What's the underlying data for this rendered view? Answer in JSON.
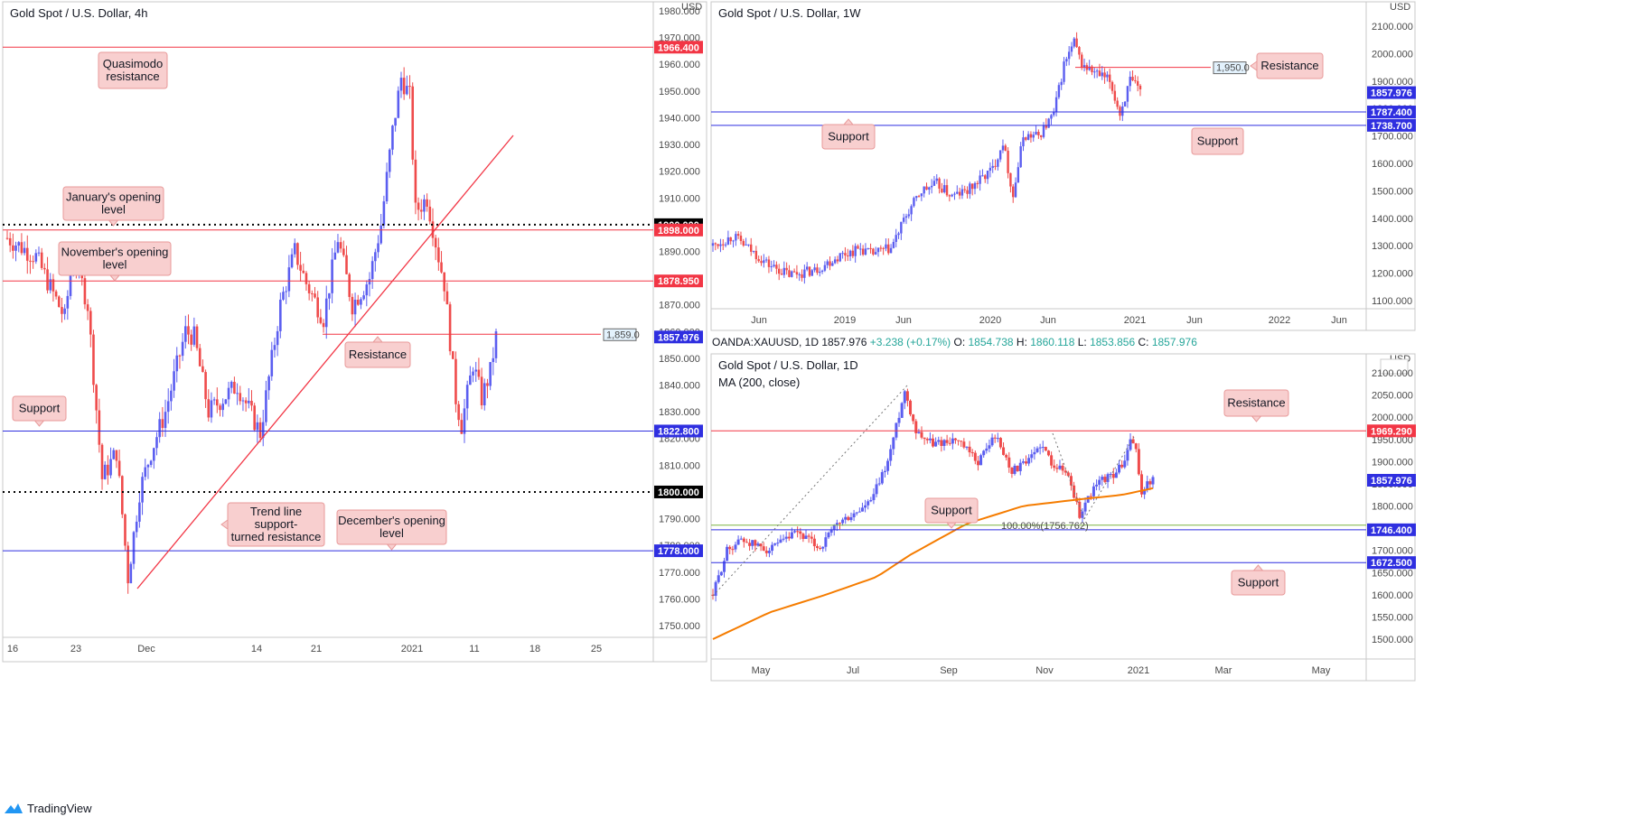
{
  "brand": "TradingView",
  "colors": {
    "up": "#5b5ef0",
    "down": "#ef4b4b",
    "red": "#f23645",
    "blue": "#2f2fe0",
    "black": "#000000",
    "ma": "#f57c00",
    "fib": "#7cb342",
    "note_bg": "#f8cfcf"
  },
  "panels": {
    "p4h": {
      "title": "Gold Spot / U.S. Dollar, 4h",
      "currency": "USD"
    },
    "p1w": {
      "title": "Gold Spot / U.S. Dollar, 1W",
      "currency": "USD"
    },
    "p1d": {
      "title": "Gold Spot / U.S. Dollar, 1D",
      "currency": "USD",
      "ma_label": "MA (200, close)"
    }
  },
  "quote_bar": {
    "symbol": "OANDA:XAUUSD, 1D",
    "last": "1857.976",
    "change": "+3.238 (+0.17%)",
    "o_label": "O:",
    "o": "1854.738",
    "h_label": "H:",
    "h": "1860.118",
    "l_label": "L:",
    "l": "1853.856",
    "c_label": "C:",
    "c": "1857.976"
  },
  "chart_data": [
    {
      "type": "candlestick",
      "title": "Gold Spot / U.S. Dollar, 4h",
      "y_ticks": [
        "1980.000",
        "1970.000",
        "1960.000",
        "1950.000",
        "1940.000",
        "1930.000",
        "1920.000",
        "1910.000",
        "1900.000",
        "1890.000",
        "1880.000",
        "1870.000",
        "1860.000",
        "1850.000",
        "1840.000",
        "1830.000",
        "1820.000",
        "1810.000",
        "1800.000",
        "1790.000",
        "1780.000",
        "1770.000",
        "1760.000",
        "1750.000"
      ],
      "x_ticks": [
        "16",
        "23",
        "Dec",
        "14",
        "21",
        "2021",
        "11",
        "18",
        "25"
      ],
      "ylim": [
        1745,
        1983
      ],
      "path": [
        [
          0,
          1895
        ],
        [
          10,
          1888
        ],
        [
          20,
          1865
        ],
        [
          23,
          1890
        ],
        [
          28,
          1870
        ],
        [
          33,
          1805
        ],
        [
          38,
          1815
        ],
        [
          41,
          1780
        ],
        [
          42,
          1768
        ],
        [
          46,
          1800
        ],
        [
          50,
          1815
        ],
        [
          55,
          1830
        ],
        [
          62,
          1860
        ],
        [
          65,
          1858
        ],
        [
          70,
          1830
        ],
        [
          80,
          1840
        ],
        [
          88,
          1822
        ],
        [
          95,
          1870
        ],
        [
          100,
          1890
        ],
        [
          104,
          1878
        ],
        [
          110,
          1865
        ],
        [
          115,
          1895
        ],
        [
          120,
          1870
        ],
        [
          126,
          1880
        ],
        [
          130,
          1900
        ],
        [
          134,
          1935
        ],
        [
          137,
          1955
        ],
        [
          140,
          1948
        ],
        [
          142,
          1905
        ],
        [
          146,
          1910
        ],
        [
          150,
          1888
        ],
        [
          152,
          1878
        ],
        [
          156,
          1835
        ],
        [
          158,
          1825
        ],
        [
          162,
          1848
        ],
        [
          165,
          1835
        ],
        [
          168,
          1845
        ],
        [
          170,
          1858
        ]
      ],
      "levels": [
        {
          "value": "1966.400",
          "color": "red"
        },
        {
          "value": "1900.000",
          "color": "black"
        },
        {
          "value": "1898.000",
          "color": "red"
        },
        {
          "value": "1878.950",
          "color": "red"
        },
        {
          "value": "1857.976",
          "color": "blue"
        },
        {
          "value": "1822.800",
          "color": "blue"
        },
        {
          "value": "1800.000",
          "color": "black"
        },
        {
          "value": "1778.000",
          "color": "blue"
        }
      ],
      "resistance_line": {
        "value": 1859.0,
        "label": "1,859.0"
      },
      "annotations": [
        "Quasimodo resistance",
        "January's opening level",
        "November's opening level",
        "Resistance",
        "Support",
        "Trend line support-turned resistance",
        "December's opening level"
      ]
    },
    {
      "type": "candlestick",
      "title": "Gold Spot / U.S. Dollar, 1W",
      "y_ticks": [
        "2100.000",
        "2000.000",
        "1900.000",
        "1800.000",
        "1700.000",
        "1600.000",
        "1500.000",
        "1400.000",
        "1300.000",
        "1200.000",
        "1100.000"
      ],
      "x_ticks": [
        "Jun",
        "2019",
        "Jun",
        "2020",
        "Jun",
        "2021",
        "Jun",
        "2022",
        "Jun"
      ],
      "ylim": [
        1060,
        2145
      ],
      "path": [
        [
          0,
          1300
        ],
        [
          8,
          1335
        ],
        [
          14,
          1290
        ],
        [
          22,
          1230
        ],
        [
          30,
          1195
        ],
        [
          40,
          1210
        ],
        [
          50,
          1265
        ],
        [
          58,
          1290
        ],
        [
          62,
          1270
        ],
        [
          70,
          1290
        ],
        [
          76,
          1410
        ],
        [
          82,
          1500
        ],
        [
          88,
          1525
        ],
        [
          94,
          1480
        ],
        [
          100,
          1500
        ],
        [
          110,
          1580
        ],
        [
          114,
          1680
        ],
        [
          118,
          1480
        ],
        [
          122,
          1700
        ],
        [
          128,
          1700
        ],
        [
          134,
          1780
        ],
        [
          138,
          1960
        ],
        [
          142,
          2040
        ],
        [
          145,
          1960
        ],
        [
          150,
          1930
        ],
        [
          156,
          1900
        ],
        [
          160,
          1780
        ],
        [
          164,
          1900
        ],
        [
          168,
          1860
        ]
      ],
      "levels": [
        {
          "value": "1857.976",
          "color": "blue"
        },
        {
          "value": "1787.400",
          "color": "blue"
        },
        {
          "value": "1738.700",
          "color": "blue"
        }
      ],
      "resistance_line": {
        "value": 1950.0,
        "label": "1,950.0"
      },
      "annotations": [
        "Resistance",
        "Support",
        "Support"
      ]
    },
    {
      "type": "candlestick",
      "title": "Gold Spot / U.S. Dollar, 1D",
      "y_ticks": [
        "2100.000",
        "2050.000",
        "2000.000",
        "1950.000",
        "1900.000",
        "1850.000",
        "1800.000",
        "1750.000",
        "1700.000",
        "1650.000",
        "1600.000",
        "1550.000",
        "1500.000"
      ],
      "x_ticks": [
        "May",
        "Jul",
        "Sep",
        "Nov",
        "2021",
        "Mar",
        "May"
      ],
      "ylim": [
        1475,
        2115
      ],
      "path": [
        [
          0,
          1600
        ],
        [
          5,
          1700
        ],
        [
          10,
          1725
        ],
        [
          20,
          1700
        ],
        [
          30,
          1740
        ],
        [
          38,
          1705
        ],
        [
          44,
          1760
        ],
        [
          50,
          1780
        ],
        [
          56,
          1810
        ],
        [
          62,
          1900
        ],
        [
          68,
          2060
        ],
        [
          72,
          1970
        ],
        [
          78,
          1940
        ],
        [
          86,
          1950
        ],
        [
          94,
          1900
        ],
        [
          100,
          1960
        ],
        [
          106,
          1880
        ],
        [
          112,
          1900
        ],
        [
          116,
          1940
        ],
        [
          120,
          1900
        ],
        [
          126,
          1870
        ],
        [
          130,
          1780
        ],
        [
          134,
          1830
        ],
        [
          138,
          1860
        ],
        [
          142,
          1870
        ],
        [
          146,
          1900
        ],
        [
          148,
          1950
        ],
        [
          150,
          1920
        ],
        [
          152,
          1830
        ],
        [
          154,
          1850
        ],
        [
          156,
          1858
        ]
      ],
      "ma200": [
        [
          0,
          1500
        ],
        [
          20,
          1560
        ],
        [
          40,
          1600
        ],
        [
          58,
          1640
        ],
        [
          70,
          1690
        ],
        [
          90,
          1760
        ],
        [
          110,
          1800
        ],
        [
          130,
          1815
        ],
        [
          145,
          1825
        ],
        [
          156,
          1840
        ]
      ],
      "levels": [
        {
          "value": "1969.290",
          "color": "red"
        },
        {
          "value": "1857.976",
          "color": "blue"
        },
        {
          "value": "1746.400",
          "color": "blue"
        },
        {
          "value": "1672.500",
          "color": "blue"
        }
      ],
      "fib": {
        "value": 1756.762,
        "label": "100.00%(1756.762)"
      },
      "annotations": [
        "Resistance",
        "Support",
        "Support"
      ]
    }
  ]
}
